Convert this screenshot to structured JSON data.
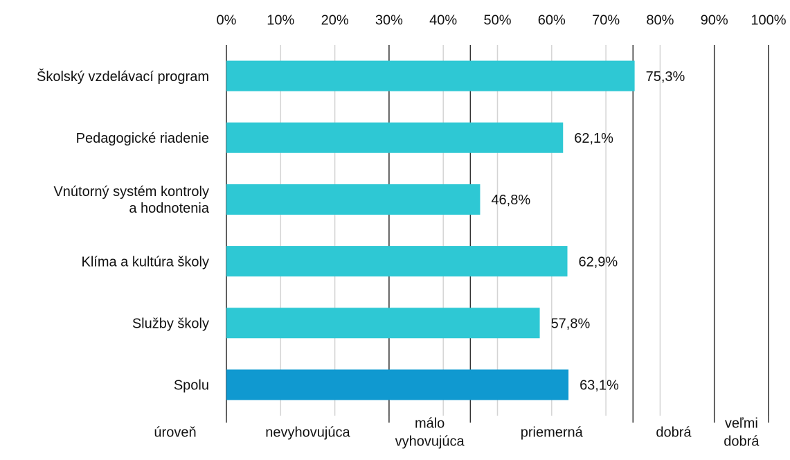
{
  "chart_data": {
    "type": "bar",
    "orientation": "horizontal",
    "categories": [
      [
        "Školský vzdelávací program"
      ],
      [
        "Pedagogické riadenie"
      ],
      [
        "Vnútorný systém kontroly",
        "a hodnotenia"
      ],
      [
        "Klíma a kultúra školy"
      ],
      [
        "Služby školy"
      ],
      [
        "Spolu"
      ]
    ],
    "values": [
      75.3,
      62.1,
      46.8,
      62.9,
      57.8,
      63.1
    ],
    "value_labels": [
      "75,3%",
      "62,1%",
      "46,8%",
      "62,9%",
      "57,8%",
      "63,1%"
    ],
    "colors": [
      "#2ec8d4",
      "#2ec8d4",
      "#2ec8d4",
      "#2ec8d4",
      "#2ec8d4",
      "#1099d0"
    ],
    "xlim": [
      0,
      100
    ],
    "xticks": [
      {
        "value": 0,
        "label": "0%"
      },
      {
        "value": 10,
        "label": "10%"
      },
      {
        "value": 20,
        "label": "20%"
      },
      {
        "value": 30,
        "label": "30%"
      },
      {
        "value": 40,
        "label": "40%"
      },
      {
        "value": 50,
        "label": "50%"
      },
      {
        "value": 60,
        "label": "60%"
      },
      {
        "value": 70,
        "label": "70%"
      },
      {
        "value": 80,
        "label": "80%"
      },
      {
        "value": 90,
        "label": "90%"
      },
      {
        "value": 100,
        "label": "100%"
      }
    ],
    "grid": true,
    "level_axis_label": "úroveň",
    "level_boundaries": [
      0,
      30,
      45,
      75,
      90,
      100
    ],
    "levels": [
      [
        "nevyhovujúca"
      ],
      [
        "málo",
        "vyhovujúca"
      ],
      [
        "priemerná"
      ],
      [
        "dobrá"
      ],
      [
        "veľmi",
        "dobrá"
      ]
    ]
  }
}
